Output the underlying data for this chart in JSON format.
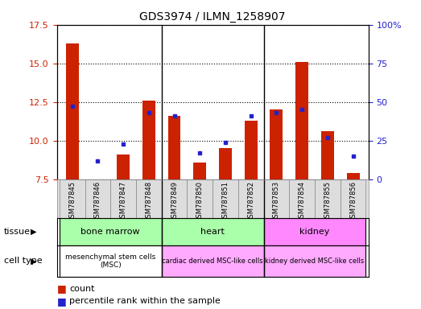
{
  "title": "GDS3974 / ILMN_1258907",
  "samples": [
    "GSM787845",
    "GSM787846",
    "GSM787847",
    "GSM787848",
    "GSM787849",
    "GSM787850",
    "GSM787851",
    "GSM787852",
    "GSM787853",
    "GSM787854",
    "GSM787855",
    "GSM787856"
  ],
  "count_values": [
    16.3,
    7.5,
    9.1,
    12.6,
    11.6,
    8.6,
    9.5,
    11.3,
    12.0,
    15.1,
    10.6,
    7.9
  ],
  "percentile_values": [
    47,
    12,
    23,
    43,
    41,
    17,
    24,
    41,
    43,
    45,
    27,
    15
  ],
  "ylim_left": [
    7.5,
    17.5
  ],
  "ylim_right": [
    0,
    100
  ],
  "yticks_left": [
    7.5,
    10.0,
    12.5,
    15.0,
    17.5
  ],
  "yticks_right": [
    0,
    25,
    50,
    75,
    100
  ],
  "ytick_labels_right": [
    "0",
    "25",
    "50",
    "75",
    "100%"
  ],
  "bar_color": "#cc2200",
  "pct_color": "#2222cc",
  "bar_width": 0.5,
  "tissues": [
    {
      "label": "bone marrow",
      "start": 0,
      "end": 3,
      "color": "#aaffaa"
    },
    {
      "label": "heart",
      "start": 4,
      "end": 7,
      "color": "#aaffaa"
    },
    {
      "label": "kidney",
      "start": 8,
      "end": 11,
      "color": "#ff88ff"
    }
  ],
  "cell_types": [
    {
      "label": "mesenchymal stem cells\n(MSC)",
      "start": 0,
      "end": 3,
      "color": "#ffffff"
    },
    {
      "label": "cardiac derived MSC-like cells",
      "start": 4,
      "end": 7,
      "color": "#ffaaff"
    },
    {
      "label": "kidney derived MSC-like cells",
      "start": 8,
      "end": 11,
      "color": "#ffaaff"
    }
  ],
  "group_borders": [
    3.5,
    7.5
  ],
  "background_color": "#ffffff",
  "sample_box_color": "#dddddd"
}
